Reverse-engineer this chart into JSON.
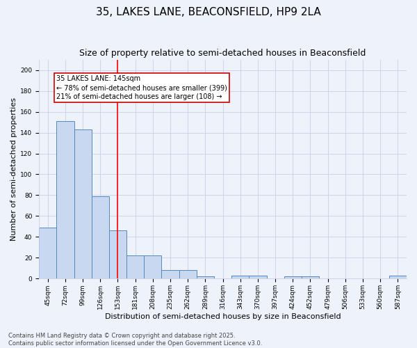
{
  "title": "35, LAKES LANE, BEACONSFIELD, HP9 2LA",
  "subtitle": "Size of property relative to semi-detached houses in Beaconsfield",
  "xlabel": "Distribution of semi-detached houses by size in Beaconsfield",
  "ylabel": "Number of semi-detached properties",
  "categories": [
    "45sqm",
    "72sqm",
    "99sqm",
    "126sqm",
    "153sqm",
    "181sqm",
    "208sqm",
    "235sqm",
    "262sqm",
    "289sqm",
    "316sqm",
    "343sqm",
    "370sqm",
    "397sqm",
    "424sqm",
    "452sqm",
    "479sqm",
    "506sqm",
    "533sqm",
    "560sqm",
    "587sqm"
  ],
  "values": [
    49,
    151,
    143,
    79,
    46,
    22,
    22,
    8,
    8,
    2,
    0,
    3,
    3,
    0,
    2,
    2,
    0,
    0,
    0,
    0,
    3
  ],
  "bar_color": "#c8d8f0",
  "bar_edge_color": "#5588bb",
  "reference_line_x": 4,
  "reference_label": "35 LAKES LANE: 145sqm",
  "annotation_line1": "← 78% of semi-detached houses are smaller (399)",
  "annotation_line2": "21% of semi-detached houses are larger (108) →",
  "ylim": [
    0,
    210
  ],
  "yticks": [
    0,
    20,
    40,
    60,
    80,
    100,
    120,
    140,
    160,
    180,
    200
  ],
  "footer_line1": "Contains HM Land Registry data © Crown copyright and database right 2025.",
  "footer_line2": "Contains public sector information licensed under the Open Government Licence v3.0.",
  "bg_color": "#eef2fb",
  "grid_color": "#c8cfe8",
  "title_fontsize": 11,
  "subtitle_fontsize": 9,
  "annotation_box_color": "#cc0000",
  "annotation_fontsize": 7,
  "ylabel_fontsize": 8,
  "xlabel_fontsize": 8,
  "tick_fontsize": 6.5,
  "footer_fontsize": 6
}
